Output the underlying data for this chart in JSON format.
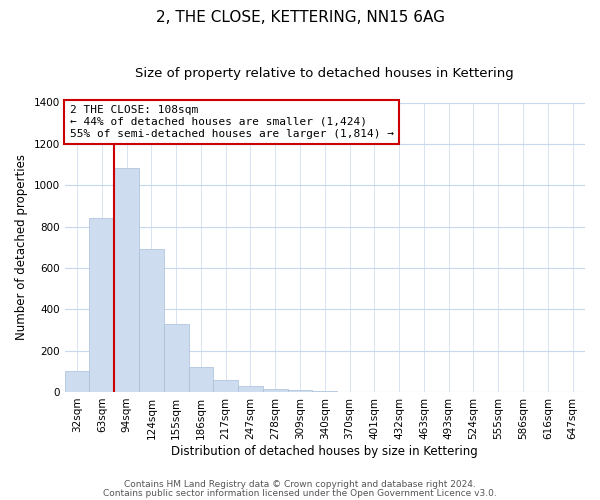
{
  "title": "2, THE CLOSE, KETTERING, NN15 6AG",
  "subtitle": "Size of property relative to detached houses in Kettering",
  "xlabel": "Distribution of detached houses by size in Kettering",
  "ylabel": "Number of detached properties",
  "bar_labels": [
    "32sqm",
    "63sqm",
    "94sqm",
    "124sqm",
    "155sqm",
    "186sqm",
    "217sqm",
    "247sqm",
    "278sqm",
    "309sqm",
    "340sqm",
    "370sqm",
    "401sqm",
    "432sqm",
    "463sqm",
    "493sqm",
    "524sqm",
    "555sqm",
    "586sqm",
    "616sqm",
    "647sqm"
  ],
  "bar_values": [
    100,
    843,
    1082,
    693,
    328,
    120,
    60,
    30,
    15,
    8,
    3,
    0,
    2,
    0,
    0,
    0,
    0,
    0,
    0,
    0,
    0
  ],
  "bar_color": "#cddcee",
  "bar_edge_color": "#a8bfd8",
  "vline_x": 2.0,
  "vline_color": "#cc0000",
  "ylim": [
    0,
    1400
  ],
  "yticks": [
    0,
    200,
    400,
    600,
    800,
    1000,
    1200,
    1400
  ],
  "annotation_line1": "2 THE CLOSE: 108sqm",
  "annotation_line2": "← 44% of detached houses are smaller (1,424)",
  "annotation_line3": "55% of semi-detached houses are larger (1,814) →",
  "annotation_box_color": "#ffffff",
  "annotation_box_edge": "#cc0000",
  "footer_line1": "Contains HM Land Registry data © Crown copyright and database right 2024.",
  "footer_line2": "Contains public sector information licensed under the Open Government Licence v3.0.",
  "background_color": "#ffffff",
  "grid_color": "#c8d8ec",
  "title_fontsize": 11,
  "subtitle_fontsize": 9.5,
  "axis_label_fontsize": 8.5,
  "tick_fontsize": 7.5,
  "annotation_fontsize": 8,
  "footer_fontsize": 6.5
}
